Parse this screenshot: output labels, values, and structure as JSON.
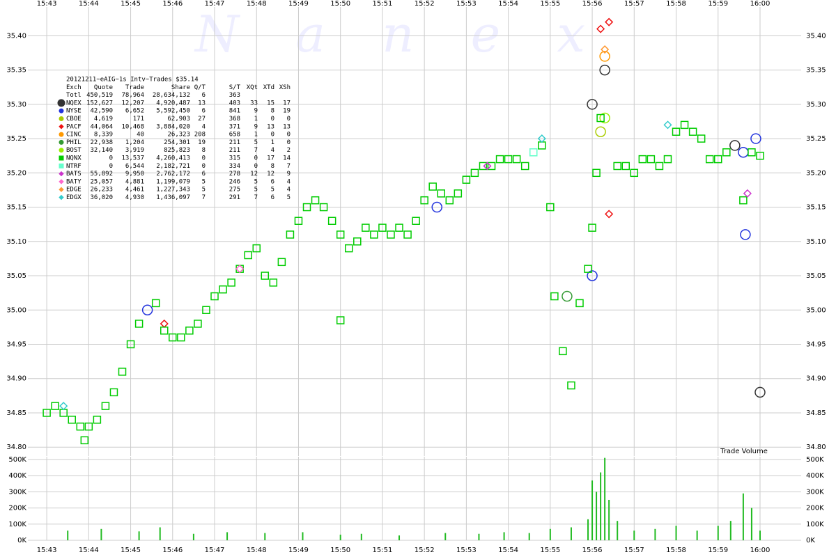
{
  "chart_data": [
    {
      "type": "scatter",
      "watermark": "N a n e x",
      "xlim": [
        942.55,
        960.98
      ],
      "xticks": [
        {
          "value": 943,
          "label": "15:43"
        },
        {
          "value": 944,
          "label": "15:44"
        },
        {
          "value": 945,
          "label": "15:45"
        },
        {
          "value": 946,
          "label": "15:46"
        },
        {
          "value": 947,
          "label": "15:47"
        },
        {
          "value": 948,
          "label": "15:48"
        },
        {
          "value": 949,
          "label": "15:49"
        },
        {
          "value": 950,
          "label": "15:50"
        },
        {
          "value": 951,
          "label": "15:51"
        },
        {
          "value": 952,
          "label": "15:52"
        },
        {
          "value": 953,
          "label": "15:53"
        },
        {
          "value": 954,
          "label": "15:54"
        },
        {
          "value": 955,
          "label": "15:55"
        },
        {
          "value": 956,
          "label": "15:56"
        },
        {
          "value": 957,
          "label": "15:57"
        },
        {
          "value": 958,
          "label": "15:58"
        },
        {
          "value": 959,
          "label": "15:59"
        },
        {
          "value": 960,
          "label": "16:00"
        }
      ],
      "ylim": [
        34.787,
        35.442
      ],
      "yticks": [
        {
          "value": 34.8,
          "label": "34.80"
        },
        {
          "value": 34.85,
          "label": "34.85"
        },
        {
          "value": 34.9,
          "label": "34.90"
        },
        {
          "value": 34.95,
          "label": "34.95"
        },
        {
          "value": 35.0,
          "label": "35.00"
        },
        {
          "value": 35.05,
          "label": "35.05"
        },
        {
          "value": 35.1,
          "label": "35.10"
        },
        {
          "value": 35.15,
          "label": "35.15"
        },
        {
          "value": 35.2,
          "label": "35.20"
        },
        {
          "value": 35.25,
          "label": "35.25"
        },
        {
          "value": 35.3,
          "label": "35.30"
        },
        {
          "value": 35.35,
          "label": "35.35"
        },
        {
          "value": 35.4,
          "label": "35.40"
        }
      ],
      "grid": true,
      "legend": {
        "title": "20121211~eAIG~1s Intv~Trades $35.14",
        "columns": [
          "Exch",
          "Quote",
          "Trade",
          "Share",
          "Q/T",
          "S/T",
          "XQt",
          "XTd",
          "XSh"
        ],
        "total": {
          "name": "Totl",
          "stats": [
            "450,519",
            "78,964",
            "28,634,132",
            "6",
            "363"
          ]
        }
      },
      "series": [
        {
          "name": "NQEX",
          "color": "#333333",
          "marker": "circle",
          "stats": [
            "152,627",
            "12,207",
            "4,920,487",
            "13",
            "403",
            "33",
            "15",
            "17"
          ],
          "x": [
            956.0,
            956.3,
            959.4,
            960.0
          ],
          "values": [
            35.3,
            35.35,
            35.24,
            34.88
          ]
        },
        {
          "name": "NYSE",
          "color": "#2233dd",
          "marker": "circle",
          "stats": [
            "42,590",
            "6,652",
            "5,592,450",
            "6",
            "841",
            "9",
            "8",
            "19"
          ],
          "x": [
            945.4,
            952.3,
            956.0,
            959.6,
            959.9,
            959.65
          ],
          "values": [
            35.0,
            35.15,
            35.05,
            35.23,
            35.25,
            35.11
          ]
        },
        {
          "name": "CBOE",
          "color": "#aacc00",
          "marker": "circle",
          "stats": [
            "4,619",
            "171",
            "62,903",
            "27",
            "368",
            "1",
            "0",
            "0"
          ],
          "x": [
            956.2
          ],
          "values": [
            35.26
          ]
        },
        {
          "name": "PACF",
          "color": "#ee1111",
          "marker": "diamond",
          "stats": [
            "44,064",
            "10,468",
            "3,884,020",
            "4",
            "371",
            "9",
            "13",
            "13"
          ],
          "x": [
            956.2,
            956.4,
            956.4,
            945.8
          ],
          "values": [
            35.41,
            35.42,
            35.14,
            34.98
          ]
        },
        {
          "name": "CINC",
          "color": "#ff9900",
          "marker": "circle",
          "stats": [
            "8,339",
            "40",
            "26,323",
            "208",
            "658",
            "1",
            "0",
            "0"
          ],
          "x": [
            956.3
          ],
          "values": [
            35.37
          ]
        },
        {
          "name": "PHIL",
          "color": "#339933",
          "marker": "circle",
          "stats": [
            "22,938",
            "1,204",
            "254,301",
            "19",
            "211",
            "5",
            "1",
            "0"
          ],
          "x": [
            955.4
          ],
          "values": [
            35.02
          ]
        },
        {
          "name": "BOST",
          "color": "#99ee00",
          "marker": "circle",
          "stats": [
            "32,140",
            "3,919",
            "825,823",
            "8",
            "211",
            "7",
            "4",
            "2"
          ],
          "x": [
            956.3
          ],
          "values": [
            35.28
          ]
        },
        {
          "name": "NQNX",
          "color": "#00cc00",
          "marker": "square",
          "stats": [
            "0",
            "13,537",
            "4,260,413",
            "0",
            "315",
            "0",
            "17",
            "14"
          ],
          "x": [
            943.0,
            943.2,
            943.4,
            943.6,
            943.8,
            944.0,
            944.2,
            944.4,
            944.6,
            944.8,
            945.0,
            945.2,
            945.6,
            945.8,
            946.0,
            946.2,
            946.4,
            946.6,
            946.8,
            947.0,
            947.2,
            947.4,
            947.6,
            947.8,
            948.0,
            948.2,
            948.4,
            948.6,
            948.8,
            949.0,
            949.2,
            949.4,
            949.6,
            949.8,
            950.0,
            950.2,
            950.4,
            950.6,
            950.8,
            951.0,
            951.2,
            951.4,
            951.6,
            951.8,
            952.0,
            952.2,
            952.4,
            952.6,
            952.8,
            953.0,
            953.2,
            953.4,
            953.6,
            953.8,
            954.0,
            954.2,
            954.4,
            954.6,
            954.8,
            955.0,
            955.1,
            955.3,
            955.5,
            955.7,
            955.9,
            956.0,
            956.1,
            956.2,
            956.6,
            956.8,
            957.0,
            957.2,
            957.4,
            957.6,
            957.8,
            958.0,
            958.2,
            958.4,
            958.6,
            958.8,
            959.0,
            959.2,
            959.6,
            959.8,
            960.0,
            950.0,
            943.9
          ],
          "values": [
            34.85,
            34.86,
            34.85,
            34.84,
            34.83,
            34.83,
            34.84,
            34.86,
            34.88,
            34.91,
            34.95,
            34.98,
            35.01,
            34.97,
            34.96,
            34.96,
            34.97,
            34.98,
            35.0,
            35.02,
            35.03,
            35.04,
            35.06,
            35.08,
            35.09,
            35.05,
            35.04,
            35.07,
            35.11,
            35.13,
            35.15,
            35.16,
            35.15,
            35.13,
            35.11,
            35.09,
            35.1,
            35.12,
            35.11,
            35.12,
            35.11,
            35.12,
            35.11,
            35.13,
            35.16,
            35.18,
            35.17,
            35.16,
            35.17,
            35.19,
            35.2,
            35.21,
            35.21,
            35.22,
            35.22,
            35.22,
            35.21,
            35.23,
            35.24,
            35.15,
            35.02,
            34.94,
            34.89,
            35.01,
            35.06,
            35.12,
            35.2,
            35.28,
            35.21,
            35.21,
            35.2,
            35.22,
            35.22,
            35.21,
            35.22,
            35.26,
            35.27,
            35.26,
            35.25,
            35.22,
            35.22,
            35.23,
            35.16,
            35.23,
            35.225,
            34.985,
            34.81
          ]
        },
        {
          "name": "NTRF",
          "color": "#66ffcc",
          "marker": "square",
          "stats": [
            "0",
            "6,544",
            "2,182,721",
            "0",
            "334",
            "0",
            "8",
            "7"
          ],
          "x": [
            954.6
          ],
          "values": [
            35.23
          ]
        },
        {
          "name": "BATS",
          "color": "#cc33cc",
          "marker": "diamond",
          "stats": [
            "55,892",
            "9,950",
            "2,762,172",
            "6",
            "278",
            "12",
            "12",
            "9"
          ],
          "x": [
            959.7,
            953.5
          ],
          "values": [
            35.17,
            35.21
          ]
        },
        {
          "name": "BATY",
          "color": "#ff66cc",
          "marker": "diamond",
          "stats": [
            "25,057",
            "4,881",
            "1,199,079",
            "5",
            "246",
            "5",
            "6",
            "4"
          ],
          "x": [
            947.6
          ],
          "values": [
            35.06
          ]
        },
        {
          "name": "EDGE",
          "color": "#ff9933",
          "marker": "diamond",
          "stats": [
            "26,233",
            "4,461",
            "1,227,343",
            "5",
            "275",
            "5",
            "5",
            "4"
          ],
          "x": [
            956.3
          ],
          "values": [
            35.38
          ]
        },
        {
          "name": "EDGX",
          "color": "#33cccc",
          "marker": "diamond",
          "stats": [
            "36,020",
            "4,930",
            "1,436,097",
            "7",
            "291",
            "7",
            "6",
            "5"
          ],
          "x": [
            954.8,
            957.8,
            943.4
          ],
          "values": [
            35.25,
            35.27,
            34.86
          ]
        }
      ]
    },
    {
      "type": "bar",
      "title": "Trade Volume",
      "color": "#22bb22",
      "xlim": [
        942.55,
        960.98
      ],
      "xticks": [
        {
          "value": 943,
          "label": "15:43"
        },
        {
          "value": 944,
          "label": "15:44"
        },
        {
          "value": 945,
          "label": "15:45"
        },
        {
          "value": 946,
          "label": "15:46"
        },
        {
          "value": 947,
          "label": "15:47"
        },
        {
          "value": 948,
          "label": "15:48"
        },
        {
          "value": 949,
          "label": "15:49"
        },
        {
          "value": 950,
          "label": "15:50"
        },
        {
          "value": 951,
          "label": "15:51"
        },
        {
          "value": 952,
          "label": "15:52"
        },
        {
          "value": 953,
          "label": "15:53"
        },
        {
          "value": 954,
          "label": "15:54"
        },
        {
          "value": 955,
          "label": "15:55"
        },
        {
          "value": 956,
          "label": "15:56"
        },
        {
          "value": 957,
          "label": "15:57"
        },
        {
          "value": 958,
          "label": "15:58"
        },
        {
          "value": 959,
          "label": "15:59"
        },
        {
          "value": 960,
          "label": "16:00"
        }
      ],
      "ylim": [
        0,
        517000
      ],
      "yticks": [
        {
          "value": 0,
          "label": "0K"
        },
        {
          "value": 100000,
          "label": "100K"
        },
        {
          "value": 200000,
          "label": "200K"
        },
        {
          "value": 300000,
          "label": "300K"
        },
        {
          "value": 400000,
          "label": "400K"
        },
        {
          "value": 500000,
          "label": "500K"
        }
      ],
      "grid": true,
      "x": [
        943.5,
        944.3,
        945.2,
        945.7,
        946.5,
        947.3,
        948.2,
        949.1,
        950.0,
        950.5,
        951.4,
        952.5,
        953.3,
        953.9,
        954.5,
        955.0,
        955.5,
        955.9,
        956.0,
        956.1,
        956.2,
        956.3,
        956.4,
        956.6,
        957.0,
        957.5,
        958.0,
        958.5,
        959.0,
        959.3,
        959.6,
        959.8,
        960.0
      ],
      "values": [
        60000,
        70000,
        55000,
        80000,
        40000,
        50000,
        45000,
        50000,
        35000,
        40000,
        30000,
        45000,
        40000,
        50000,
        45000,
        70000,
        80000,
        130000,
        370000,
        300000,
        420000,
        510000,
        250000,
        120000,
        60000,
        70000,
        90000,
        60000,
        90000,
        120000,
        290000,
        200000,
        60000
      ]
    }
  ]
}
